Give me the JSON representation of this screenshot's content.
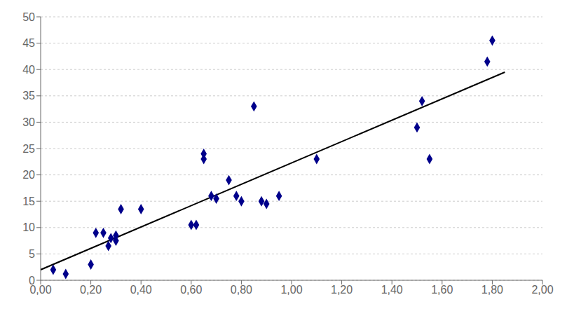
{
  "chart_data": {
    "type": "scatter",
    "grid": "y",
    "xlim": [
      0.0,
      2.0
    ],
    "ylim": [
      0,
      50
    ],
    "xticks": [
      {
        "value": 0.0,
        "label": "0,00"
      },
      {
        "value": 0.2,
        "label": "0,20"
      },
      {
        "value": 0.4,
        "label": "0,40"
      },
      {
        "value": 0.6,
        "label": "0,60"
      },
      {
        "value": 0.8,
        "label": "0,80"
      },
      {
        "value": 1.0,
        "label": "1,00"
      },
      {
        "value": 1.2,
        "label": "1,20"
      },
      {
        "value": 1.4,
        "label": "1,40"
      },
      {
        "value": 1.6,
        "label": "1,60"
      },
      {
        "value": 1.8,
        "label": "1,80"
      },
      {
        "value": 2.0,
        "label": "2,00"
      }
    ],
    "yticks": [
      0,
      5,
      10,
      15,
      20,
      25,
      30,
      35,
      40,
      45,
      50
    ],
    "series": [
      {
        "type": "line",
        "line_style": "solid",
        "color": "#000000",
        "x": [
          0.0,
          1.85
        ],
        "values": [
          2.0,
          39.5
        ]
      },
      {
        "type": "scatter",
        "marker": "diamond",
        "color": "#00008B",
        "x": [
          0.05,
          0.1,
          0.2,
          0.22,
          0.25,
          0.27,
          0.28,
          0.3,
          0.3,
          0.32,
          0.4,
          0.6,
          0.62,
          0.65,
          0.65,
          0.68,
          0.7,
          0.75,
          0.78,
          0.8,
          0.85,
          0.88,
          0.9,
          0.95,
          1.1,
          1.5,
          1.52,
          1.55,
          1.78,
          1.8
        ],
        "values": [
          2.0,
          1.2,
          3.0,
          9.0,
          9.0,
          6.5,
          8.0,
          8.5,
          7.5,
          13.5,
          13.5,
          10.5,
          10.5,
          24.0,
          23.0,
          16.0,
          15.5,
          19.0,
          16.0,
          15.0,
          33.0,
          15.0,
          14.5,
          16.0,
          23.0,
          29.0,
          34.0,
          23.0,
          41.5,
          45.5
        ]
      }
    ]
  }
}
